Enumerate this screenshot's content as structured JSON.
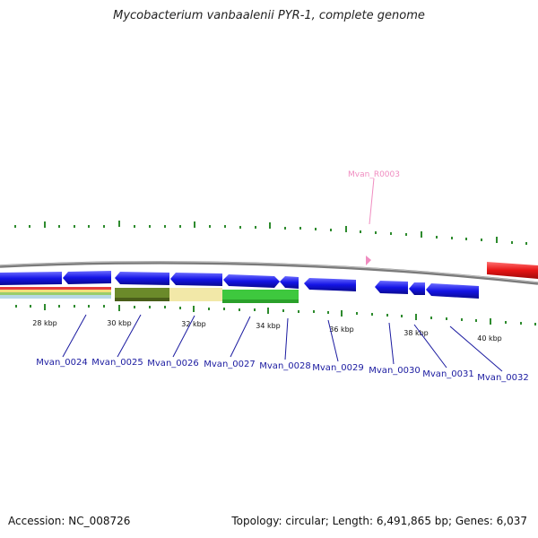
{
  "title": "Mycobacterium vanbaalenii PYR-1, complete genome",
  "footer": {
    "accession": "Accession: NC_008726",
    "stats": "Topology: circular; Length: 6,491,865 bp; Genes: 6,037"
  },
  "scale_labels": [
    "28 kbp",
    "30 kbp",
    "32 kbp",
    "34 kbp",
    "36 kbp",
    "38 kbp",
    "40 kbp"
  ],
  "gene_labels": [
    "Mvan_0024",
    "Mvan_0025",
    "Mvan_0026",
    "Mvan_0027",
    "Mvan_0028",
    "Mvan_0029",
    "Mvan_0030",
    "Mvan_0031",
    "Mvan_0032"
  ],
  "rna_label": "Mvan_R0003",
  "colors": {
    "cds": "#1414e6",
    "rrna": "#e61414",
    "trna": "#f08cc0",
    "tick": "#2e8b2e",
    "backbone": "#777777",
    "gene_label": "#1a1aa0"
  }
}
